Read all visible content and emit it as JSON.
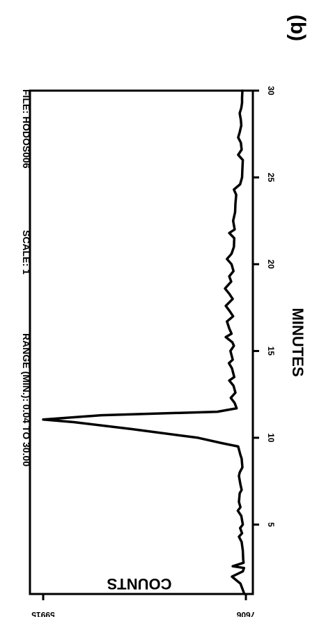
{
  "panel_label": "(b)",
  "header": {
    "file": "FILE: HODOS006",
    "scale": "SCALE: 1",
    "range": "RANGE (MIN.): 0.04 TO 30.00"
  },
  "chart_data": {
    "type": "line",
    "title": "",
    "xlabel": "MINUTES",
    "ylabel": "COUNTS",
    "xlim": [
      1,
      30
    ],
    "ylim": [
      7606,
      59915
    ],
    "x_ticks": [
      5,
      10,
      15,
      20,
      25,
      30
    ],
    "y_tick_labels": [
      "59915",
      "7606"
    ],
    "series": [
      {
        "x": [
          1.0,
          1.6,
          2.0,
          2.3,
          2.5,
          2.6,
          2.8,
          3.0,
          3.5,
          4.0,
          4.3,
          4.5,
          4.8,
          5.0,
          5.5,
          5.8,
          6.0,
          6.3,
          6.8,
          7.0,
          7.3,
          7.8,
          8.0,
          8.3,
          8.8,
          9.0,
          9.5,
          9.7,
          10.0,
          10.5,
          10.9,
          11.05,
          11.3,
          11.5,
          11.7,
          12.0,
          12.3,
          12.6,
          13.0,
          13.3,
          13.5,
          14.0,
          14.3,
          14.5,
          15.0,
          15.3,
          15.5,
          15.8,
          16.0,
          16.3,
          16.7,
          17.0,
          17.3,
          17.6,
          18.0,
          18.3,
          18.6,
          19.0,
          19.3,
          19.6,
          20.0,
          20.3,
          20.6,
          21.0,
          21.5,
          21.8,
          22.0,
          22.5,
          23.0,
          23.5,
          24.0,
          24.3,
          24.6,
          25.0,
          25.5,
          26.0,
          26.3,
          26.6,
          27.0,
          27.3,
          27.6,
          28.0,
          28.3,
          28.7,
          29.0,
          29.3,
          29.6,
          30.0
        ],
        "y": [
          8000,
          9000,
          11200,
          8400,
          8100,
          11000,
          8200,
          8300,
          8400,
          8700,
          9400,
          8600,
          9100,
          8400,
          8800,
          9700,
          9000,
          9400,
          9200,
          8700,
          9000,
          9400,
          9200,
          8500,
          8700,
          9000,
          9600,
          14000,
          20000,
          37000,
          52000,
          59915,
          45000,
          15000,
          10000,
          10500,
          11500,
          10300,
          10800,
          11900,
          10600,
          11200,
          12000,
          11000,
          11600,
          10700,
          11100,
          12800,
          11300,
          11900,
          12500,
          10900,
          11800,
          12800,
          11000,
          11900,
          13000,
          11400,
          11900,
          10800,
          11300,
          12500,
          11300,
          10700,
          10600,
          11900,
          10500,
          10900,
          10400,
          10300,
          10100,
          10700,
          9100,
          8600,
          8500,
          8400,
          9600,
          8700,
          8900,
          9600,
          9200,
          8800,
          8900,
          9200,
          8800,
          8600,
          8600,
          8500
        ]
      }
    ]
  }
}
